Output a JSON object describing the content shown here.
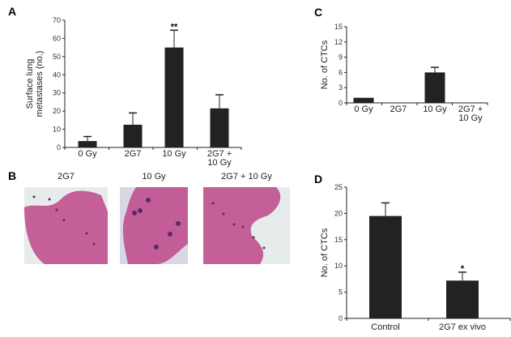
{
  "chart_data": [
    {
      "panel": "A",
      "type": "bar",
      "categories": [
        [
          "0 Gy"
        ],
        [
          "2G7"
        ],
        [
          "10 Gy"
        ],
        [
          "2G7 +",
          "10 Gy"
        ]
      ],
      "values": [
        3.5,
        12.5,
        55,
        21.5
      ],
      "error_upper": [
        6,
        19,
        64.5,
        29
      ],
      "annotations": [
        "",
        "",
        "**",
        ""
      ],
      "ylabel": [
        "Surface lung",
        "metastases (no.)"
      ],
      "ylim": [
        0,
        70
      ],
      "yticks": [
        0,
        10,
        20,
        30,
        40,
        50,
        60,
        70
      ],
      "bar_color": "#222222"
    },
    {
      "panel": "C",
      "type": "bar",
      "categories": [
        [
          "0 Gy"
        ],
        [
          "2G7"
        ],
        [
          "10 Gy"
        ],
        [
          "2G7 +",
          "10 Gy"
        ]
      ],
      "values": [
        1,
        0,
        6,
        0
      ],
      "error_upper": [
        1,
        0,
        7,
        0
      ],
      "annotations": [
        "",
        "",
        "",
        ""
      ],
      "ylabel": [
        "No. of CTCs"
      ],
      "ylim": [
        0,
        15
      ],
      "yticks": [
        0,
        3,
        6,
        9,
        12,
        15
      ],
      "bar_color": "#222222"
    },
    {
      "panel": "D",
      "type": "bar",
      "categories": [
        [
          "Control"
        ],
        [
          "2G7 ex vivo"
        ]
      ],
      "values": [
        19.5,
        7.2
      ],
      "error_upper": [
        22,
        8.8
      ],
      "annotations": [
        "",
        "*"
      ],
      "ylabel": [
        "No. of CTCs"
      ],
      "ylim": [
        0,
        25
      ],
      "yticks": [
        0,
        5,
        10,
        15,
        20,
        25
      ],
      "bar_color": "#222222"
    }
  ],
  "panel_b": {
    "letter": "B",
    "images": [
      {
        "label": "2G7"
      },
      {
        "label": "10 Gy"
      },
      {
        "label": "2G7 + 10 Gy"
      }
    ],
    "tissue_color": "#c0508f"
  }
}
